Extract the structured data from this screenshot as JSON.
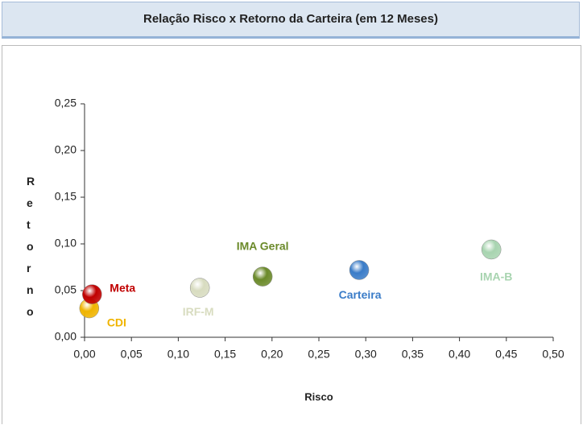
{
  "chart_data": {
    "type": "scatter",
    "title": "Relação Risco x Retorno da Carteira (em 12 Meses)",
    "x_label": "Risco",
    "y_label": "Retorno",
    "xlim": [
      0,
      0.5
    ],
    "xticks": [
      {
        "value": 0,
        "label": "0,00"
      },
      {
        "value": 0.05,
        "label": "0,05"
      },
      {
        "value": 0.1,
        "label": "0,10"
      },
      {
        "value": 0.15,
        "label": "0,15"
      },
      {
        "value": 0.2,
        "label": "0,20"
      },
      {
        "value": 0.25,
        "label": "0,25"
      },
      {
        "value": 0.3,
        "label": "0,30"
      },
      {
        "value": 0.35,
        "label": "0,35"
      },
      {
        "value": 0.4,
        "label": "0,40"
      },
      {
        "value": 0.45,
        "label": "0,45"
      },
      {
        "value": 0.5,
        "label": "0,50"
      }
    ],
    "ylim": [
      0,
      0.25
    ],
    "yticks": [
      {
        "value": 0,
        "label": "0,00"
      },
      {
        "value": 0.05,
        "label": "0,05"
      },
      {
        "value": 0.1,
        "label": "0,10"
      },
      {
        "value": 0.15,
        "label": "0,15"
      },
      {
        "value": 0.2,
        "label": "0,20"
      },
      {
        "value": 0.25,
        "label": "0,25"
      }
    ],
    "series": [
      {
        "name": "CDI",
        "color": "#f0b400",
        "x": [
          0.005
        ],
        "y": [
          0.031
        ]
      },
      {
        "name": "Meta",
        "color": "#c00000",
        "x": [
          0.008
        ],
        "y": [
          0.046
        ]
      },
      {
        "name": "IRF-M",
        "color": "#d8dcc0",
        "x": [
          0.123
        ],
        "y": [
          0.053
        ]
      },
      {
        "name": "IMA Geral",
        "color": "#6b8a2a",
        "x": [
          0.19
        ],
        "y": [
          0.065
        ]
      },
      {
        "name": "Carteira",
        "color": "#3a7cc8",
        "x": [
          0.293
        ],
        "y": [
          0.072
        ]
      },
      {
        "name": "IMA-B",
        "color": "#a8d4b0",
        "x": [
          0.434
        ],
        "y": [
          0.094
        ]
      }
    ]
  }
}
